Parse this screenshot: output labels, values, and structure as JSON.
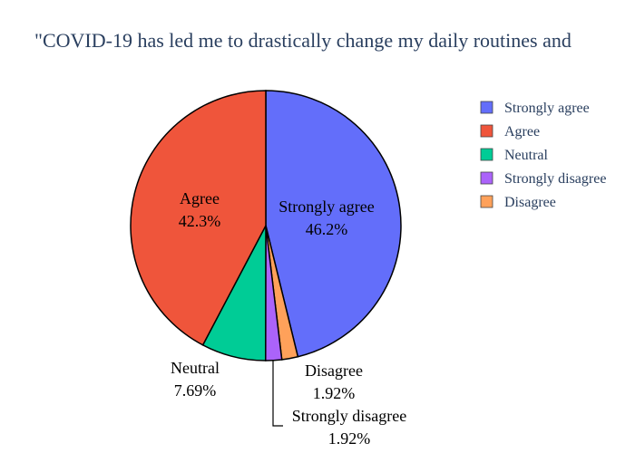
{
  "chart_data": {
    "type": "pie",
    "title": "\"COVID-19 has led me to drastically change my daily routines and",
    "slices": [
      {
        "label": "Strongly agree",
        "value": 46.2,
        "percent_label": "46.2%",
        "color": "#636efa"
      },
      {
        "label": "Disagree",
        "value": 1.92,
        "percent_label": "1.92%",
        "color": "#ffa15a"
      },
      {
        "label": "Strongly disagree",
        "value": 1.92,
        "percent_label": "1.92%",
        "color": "#ab63fa"
      },
      {
        "label": "Neutral",
        "value": 7.69,
        "percent_label": "7.69%",
        "color": "#00cc96"
      },
      {
        "label": "Agree",
        "value": 42.3,
        "percent_label": "42.3%",
        "color": "#ef553b"
      }
    ],
    "legend": {
      "placement": "right",
      "entries": [
        {
          "label": "Strongly agree",
          "color": "#636efa"
        },
        {
          "label": "Agree",
          "color": "#ef553b"
        },
        {
          "label": "Neutral",
          "color": "#00cc96"
        },
        {
          "label": "Strongly disagree",
          "color": "#ab63fa"
        },
        {
          "label": "Disagree",
          "color": "#ffa15a"
        }
      ]
    }
  }
}
